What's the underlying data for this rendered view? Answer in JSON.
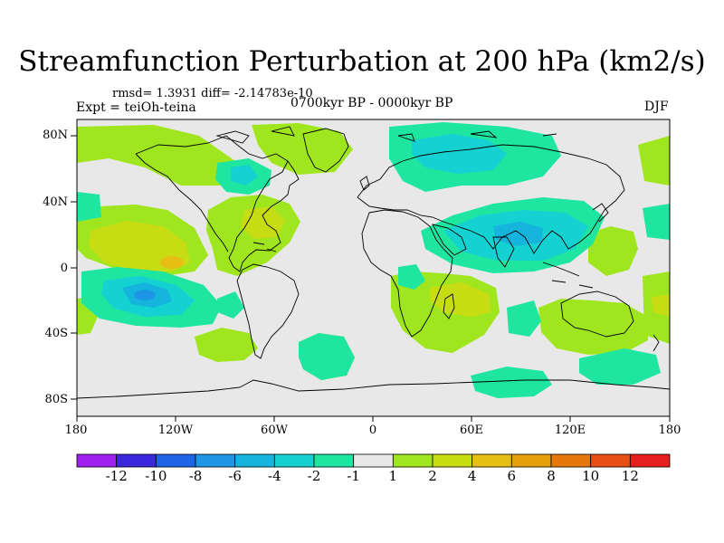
{
  "title": "Streamfunction Perturbation at 200 hPa (km2/s)",
  "stats": "rmsd= 1.3931 diff= -2.14783e-10",
  "expt": "Expt = teiOh-teina",
  "period": "0700kyr BP - 0000kyr BP",
  "season": "DJF",
  "lat_labels": [
    "80N",
    "40N",
    "0",
    "40S",
    "80S"
  ],
  "lon_labels": [
    "180",
    "120W",
    "60W",
    "0",
    "60E",
    "120E",
    "180"
  ],
  "colorbar": {
    "labels": [
      "-12",
      "-10",
      "-8",
      "-6",
      "-4",
      "-2",
      "-1",
      "1",
      "2",
      "4",
      "6",
      "8",
      "10",
      "12"
    ],
    "colors": [
      "#a020f0",
      "#3c28dc",
      "#1e64e6",
      "#1e96e6",
      "#14b4dc",
      "#14d2d2",
      "#1ee6a0",
      "#e8e8e8",
      "#a0e61e",
      "#c8dc14",
      "#e6be14",
      "#e6a00a",
      "#e6780a",
      "#e65014",
      "#e61e1e"
    ]
  },
  "colors": {
    "background": "#e8e8e8",
    "coast": "#000000"
  }
}
